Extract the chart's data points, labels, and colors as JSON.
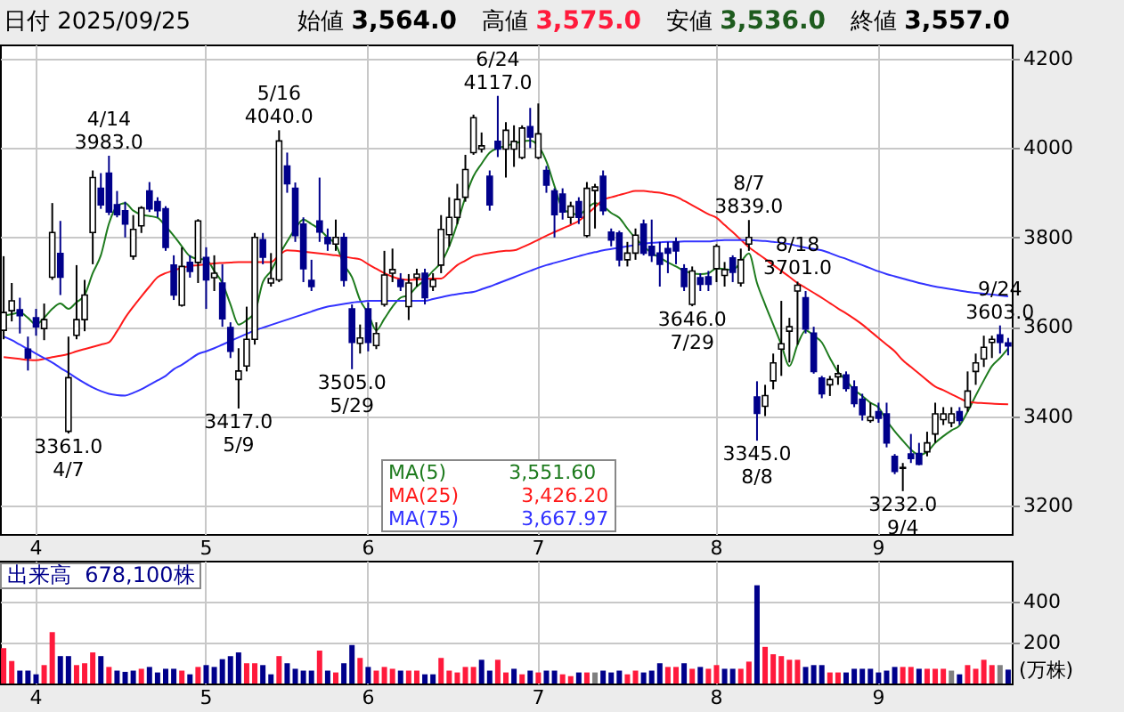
{
  "chart_data": [
    {
      "type": "candlestick",
      "title": "日付 2025/09/25",
      "annotations": [
        "始値 3,564.0",
        "高値 3,575.0",
        "安値 3,536.0",
        "終値 3,557.0",
        "3,551.60",
        "3,426.20",
        "3,667.97",
        {
          "text": "4/14\n3983.0",
          "y": 3983
        },
        {
          "text": "3361.0\n4/7",
          "y": 3361
        },
        {
          "text": "5/16\n4040.0",
          "y": 4040
        },
        {
          "text": "3417.0\n5/9",
          "y": 3417
        },
        {
          "text": "3505.0\n5/29",
          "y": 3505
        },
        {
          "text": "6/24\n4117.0",
          "y": 4117
        },
        {
          "text": "3646.0\n7/29",
          "y": 3646
        },
        {
          "text": "8/7\n3839.0",
          "y": 3839
        },
        {
          "text": "8/18\n3701.0",
          "y": 3701
        },
        {
          "text": "3345.0\n8/8",
          "y": 3345
        },
        {
          "text": "3232.0\n9/4",
          "y": 3232
        },
        {
          "text": "9/24\n3603.0",
          "y": 3603
        }
      ],
      "categories": [
        null,
        null,
        null,
        null,
        "4",
        null,
        null,
        null,
        null,
        null,
        null,
        null,
        null,
        null,
        null,
        null,
        null,
        null,
        null,
        null,
        null,
        null,
        null,
        null,
        null,
        "5",
        null,
        null,
        null,
        null,
        null,
        null,
        null,
        null,
        null,
        null,
        null,
        null,
        null,
        null,
        null,
        null,
        null,
        null,
        null,
        "6",
        null,
        null,
        null,
        null,
        null,
        null,
        null,
        null,
        null,
        null,
        null,
        null,
        null,
        null,
        null,
        null,
        null,
        null,
        null,
        null,
        "7",
        null,
        null,
        null,
        null,
        null,
        null,
        null,
        null,
        null,
        null,
        null,
        null,
        null,
        null,
        null,
        null,
        null,
        null,
        null,
        null,
        null,
        "8",
        null,
        null,
        null,
        null,
        null,
        null,
        null,
        null,
        null,
        null,
        null,
        null,
        null,
        null,
        null,
        null,
        null,
        null,
        null,
        "9",
        null,
        null,
        null,
        null,
        null,
        null,
        null,
        null,
        null,
        null,
        null,
        null,
        null,
        null,
        null,
        null
      ],
      "ohlc": [
        [
          3592,
          3758,
          3572,
          3632
        ],
        [
          3636,
          3698,
          3612,
          3658
        ],
        [
          3638,
          3665,
          3585,
          3625
        ],
        [
          3550,
          3578,
          3502,
          3530
        ],
        [
          3620,
          3640,
          3580,
          3600
        ],
        [
          3596,
          3652,
          3570,
          3616
        ],
        [
          3711,
          3877,
          3705,
          3811
        ],
        [
          3764,
          3837,
          3671,
          3711
        ],
        [
          3366,
          3578,
          3361,
          3486
        ],
        [
          3581,
          3738,
          3572,
          3616
        ],
        [
          3616,
          3705,
          3590,
          3671
        ],
        [
          3811,
          3950,
          3740,
          3934
        ],
        [
          3910,
          3944,
          3864,
          3873
        ],
        [
          3944,
          3983,
          3850,
          3857
        ],
        [
          3873,
          3904,
          3845,
          3851
        ],
        [
          3860,
          3880,
          3800,
          3830
        ],
        [
          3758,
          3850,
          3750,
          3818
        ],
        [
          3826,
          3870,
          3810,
          3866
        ],
        [
          3904,
          3924,
          3857,
          3864
        ],
        [
          3880,
          3890,
          3845,
          3860
        ],
        [
          3864,
          3870,
          3770,
          3778
        ],
        [
          3738,
          3760,
          3660,
          3671
        ],
        [
          3648,
          3778,
          3645,
          3735
        ],
        [
          3744,
          3760,
          3710,
          3724
        ],
        [
          3744,
          3841,
          3698,
          3837
        ],
        [
          3755,
          3778,
          3640,
          3705
        ],
        [
          3710,
          3760,
          3680,
          3720
        ],
        [
          3698,
          3740,
          3600,
          3618
        ],
        [
          3598,
          3610,
          3530,
          3545
        ],
        [
          3482,
          3552,
          3417,
          3501
        ],
        [
          3512,
          3645,
          3500,
          3572
        ],
        [
          3572,
          3810,
          3560,
          3800
        ],
        [
          3795,
          3810,
          3740,
          3756
        ],
        [
          3698,
          3765,
          3690,
          3708
        ],
        [
          3705,
          4040,
          3700,
          4016
        ],
        [
          3960,
          3990,
          3900,
          3920
        ],
        [
          3910,
          3923,
          3790,
          3804
        ],
        [
          3830,
          3845,
          3700,
          3730
        ],
        [
          3704,
          3750,
          3680,
          3690
        ],
        [
          3837,
          3934,
          3790,
          3812
        ],
        [
          3800,
          3820,
          3770,
          3786
        ],
        [
          3785,
          3840,
          3770,
          3800
        ],
        [
          3800,
          3810,
          3690,
          3704
        ],
        [
          3640,
          3650,
          3505,
          3565
        ],
        [
          3563,
          3605,
          3540,
          3575
        ],
        [
          3640,
          3655,
          3545,
          3565
        ],
        [
          3558,
          3610,
          3550,
          3585
        ],
        [
          3650,
          3770,
          3645,
          3716
        ],
        [
          3720,
          3775,
          3700,
          3728
        ],
        [
          3705,
          3720,
          3680,
          3690
        ],
        [
          3645,
          3718,
          3615,
          3698
        ],
        [
          3710,
          3730,
          3690,
          3718
        ],
        [
          3720,
          3730,
          3650,
          3665
        ],
        [
          3690,
          3720,
          3680,
          3705
        ],
        [
          3738,
          3850,
          3720,
          3818
        ],
        [
          3806,
          3890,
          3780,
          3845
        ],
        [
          3845,
          3920,
          3830,
          3885
        ],
        [
          3890,
          3985,
          3880,
          3952
        ],
        [
          3990,
          4075,
          3985,
          4068
        ],
        [
          3998,
          4035,
          3990,
          4005
        ],
        [
          3937,
          3950,
          3860,
          3873
        ],
        [
          4015,
          4117,
          3980,
          3998
        ],
        [
          3998,
          4058,
          3934,
          4040
        ],
        [
          3998,
          4051,
          3958,
          4015
        ],
        [
          3979,
          4051,
          3975,
          4045
        ],
        [
          4048,
          4090,
          4000,
          4025
        ],
        [
          3979,
          4100,
          3975,
          4032
        ],
        [
          3950,
          3960,
          3900,
          3917
        ],
        [
          3904,
          3910,
          3800,
          3851
        ],
        [
          3897,
          3910,
          3840,
          3857
        ],
        [
          3845,
          3880,
          3830,
          3870
        ],
        [
          3880,
          3890,
          3830,
          3845
        ],
        [
          3804,
          3924,
          3800,
          3910
        ],
        [
          3905,
          3920,
          3820,
          3913
        ],
        [
          3937,
          3950,
          3850,
          3860
        ],
        [
          3812,
          3820,
          3780,
          3794
        ],
        [
          3810,
          3815,
          3735,
          3750
        ],
        [
          3750,
          3790,
          3735,
          3765
        ],
        [
          3765,
          3820,
          3750,
          3805
        ],
        [
          3830,
          3840,
          3760,
          3765
        ],
        [
          3780,
          3840,
          3745,
          3760
        ],
        [
          3765,
          3790,
          3690,
          3740
        ],
        [
          3775,
          3790,
          3720,
          3765
        ],
        [
          3790,
          3800,
          3740,
          3770
        ],
        [
          3730,
          3740,
          3680,
          3690
        ],
        [
          3650,
          3735,
          3646,
          3725
        ],
        [
          3710,
          3720,
          3680,
          3695
        ],
        [
          3712,
          3725,
          3680,
          3695
        ],
        [
          3730,
          3785,
          3700,
          3780
        ],
        [
          3715,
          3745,
          3690,
          3728
        ],
        [
          3754,
          3760,
          3700,
          3722
        ],
        [
          3698,
          3775,
          3690,
          3750
        ],
        [
          3785,
          3839,
          3770,
          3800
        ],
        [
          3443,
          3478,
          3345,
          3406
        ],
        [
          3422,
          3470,
          3400,
          3446
        ],
        [
          3479,
          3540,
          3460,
          3519
        ],
        [
          3550,
          3658,
          3490,
          3562
        ],
        [
          3590,
          3620,
          3520,
          3600
        ],
        [
          3680,
          3701,
          3560,
          3693
        ],
        [
          3665,
          3680,
          3585,
          3595
        ],
        [
          3586,
          3600,
          3495,
          3500
        ],
        [
          3485,
          3490,
          3440,
          3450
        ],
        [
          3470,
          3490,
          3445,
          3482
        ],
        [
          3488,
          3515,
          3470,
          3495
        ],
        [
          3492,
          3500,
          3455,
          3462
        ],
        [
          3465,
          3480,
          3420,
          3428
        ],
        [
          3438,
          3450,
          3390,
          3403
        ],
        [
          3390,
          3430,
          3385,
          3398
        ],
        [
          3410,
          3430,
          3385,
          3395
        ],
        [
          3405,
          3430,
          3330,
          3340
        ],
        [
          3310,
          3315,
          3270,
          3276
        ],
        [
          3283,
          3295,
          3232,
          3285
        ],
        [
          3315,
          3360,
          3295,
          3305
        ],
        [
          3316,
          3340,
          3290,
          3292
        ],
        [
          3320,
          3365,
          3310,
          3340
        ],
        [
          3360,
          3430,
          3340,
          3405
        ],
        [
          3392,
          3420,
          3380,
          3405
        ],
        [
          3385,
          3420,
          3375,
          3405
        ],
        [
          3410,
          3420,
          3380,
          3390
        ],
        [
          3420,
          3500,
          3410,
          3456
        ],
        [
          3500,
          3540,
          3470,
          3519
        ],
        [
          3528,
          3580,
          3510,
          3554
        ],
        [
          3565,
          3580,
          3530,
          3572
        ],
        [
          3582,
          3603,
          3540,
          3565
        ],
        [
          3564,
          3575,
          3536,
          3557
        ]
      ],
      "series": [
        {
          "name": "MA(5)",
          "type": "line",
          "color": "#1e7b1e",
          "values": [
            3625,
            3628,
            3632,
            3620,
            3605,
            3620,
            3640,
            3652,
            3640,
            3655,
            3671,
            3720,
            3760,
            3831,
            3870,
            3877,
            3860,
            3851,
            3848,
            3844,
            3825,
            3804,
            3780,
            3758,
            3752,
            3751,
            3725,
            3698,
            3650,
            3605,
            3615,
            3632,
            3700,
            3725,
            3760,
            3791,
            3820,
            3840,
            3830,
            3818,
            3800,
            3784,
            3740,
            3711,
            3660,
            3630,
            3592,
            3618,
            3645,
            3665,
            3671,
            3690,
            3705,
            3725,
            3744,
            3780,
            3831,
            3890,
            3937,
            3965,
            3990,
            4000,
            4005,
            4010,
            4015,
            4017,
            4005,
            3970,
            3915,
            3864,
            3855,
            3851,
            3865,
            3877,
            3870,
            3855,
            3844,
            3820,
            3798,
            3780,
            3765,
            3755,
            3744,
            3735,
            3725,
            3720,
            3718,
            3720,
            3731,
            3729,
            3727,
            3745,
            3764,
            3698,
            3650,
            3605,
            3560,
            3512,
            3560,
            3592,
            3580,
            3565,
            3530,
            3499,
            3480,
            3459,
            3445,
            3430,
            3419,
            3390,
            3366,
            3345,
            3325,
            3313,
            3320,
            3340,
            3355,
            3368,
            3379,
            3410,
            3446,
            3480,
            3512,
            3530,
            3551.6
          ]
        },
        {
          "name": "MA(25)",
          "type": "line",
          "color": "#ff1a1a",
          "values": [
            3532,
            3530,
            3528,
            3526,
            3525,
            3528,
            3532,
            3535,
            3539,
            3545,
            3550,
            3555,
            3560,
            3565,
            3590,
            3620,
            3645,
            3668,
            3690,
            3711,
            3720,
            3726,
            3732,
            3736,
            3738,
            3740,
            3742,
            3743,
            3744,
            3745,
            3745,
            3745,
            3745,
            3745,
            3760,
            3771,
            3770,
            3768,
            3766,
            3764,
            3762,
            3760,
            3757,
            3754,
            3751,
            3740,
            3730,
            3720,
            3712,
            3707,
            3705,
            3706,
            3707,
            3708,
            3708,
            3722,
            3738,
            3748,
            3758,
            3762,
            3765,
            3768,
            3770,
            3771,
            3778,
            3786,
            3795,
            3804,
            3812,
            3820,
            3828,
            3837,
            3852,
            3868,
            3884,
            3890,
            3895,
            3900,
            3904,
            3904,
            3902,
            3900,
            3896,
            3891,
            3882,
            3872,
            3862,
            3852,
            3844,
            3828,
            3812,
            3795,
            3778,
            3765,
            3752,
            3738,
            3725,
            3712,
            3698,
            3687,
            3676,
            3665,
            3653,
            3641,
            3630,
            3618,
            3605,
            3590,
            3575,
            3560,
            3545,
            3525,
            3510,
            3495,
            3480,
            3466,
            3458,
            3449,
            3440,
            3432,
            3430,
            3429,
            3428,
            3427,
            3426.2
          ]
        },
        {
          "name": "MA(75)",
          "type": "line",
          "color": "#3333ff",
          "values": [
            3578,
            3570,
            3560,
            3550,
            3540,
            3530,
            3520,
            3508,
            3497,
            3485,
            3474,
            3464,
            3456,
            3450,
            3447,
            3446,
            3452,
            3460,
            3470,
            3480,
            3490,
            3505,
            3515,
            3527,
            3539,
            3545,
            3552,
            3560,
            3568,
            3576,
            3584,
            3592,
            3598,
            3604,
            3610,
            3616,
            3622,
            3628,
            3634,
            3640,
            3645,
            3648,
            3651,
            3654,
            3656,
            3658,
            3658,
            3658,
            3658,
            3658,
            3658,
            3658,
            3658,
            3662,
            3666,
            3670,
            3673,
            3676,
            3678,
            3684,
            3690,
            3697,
            3704,
            3711,
            3718,
            3725,
            3732,
            3738,
            3743,
            3748,
            3753,
            3758,
            3763,
            3767,
            3771,
            3774,
            3777,
            3780,
            3783,
            3786,
            3788,
            3789,
            3790,
            3790,
            3791,
            3791,
            3791,
            3791,
            3793,
            3794,
            3794,
            3794,
            3794,
            3793,
            3792,
            3790,
            3788,
            3785,
            3781,
            3777,
            3774,
            3771,
            3765,
            3758,
            3752,
            3745,
            3738,
            3731,
            3724,
            3718,
            3713,
            3708,
            3703,
            3698,
            3694,
            3690,
            3687,
            3684,
            3681,
            3678,
            3676,
            3674,
            3672,
            3670,
            3667.97
          ]
        }
      ],
      "ylim": [
        3136,
        4232
      ],
      "yticks": [
        3200,
        3400,
        3600,
        3800,
        4000,
        4200
      ],
      "grid": true,
      "legend": "bottom"
    },
    {
      "type": "bar",
      "title": "出来高",
      "annotations": [
        "678,100株"
      ],
      "ylabel": "(万株)",
      "categories": [
        null,
        null,
        null,
        null,
        "4",
        null,
        null,
        null,
        null,
        null,
        null,
        null,
        null,
        null,
        null,
        null,
        null,
        null,
        null,
        null,
        null,
        null,
        null,
        null,
        null,
        "5",
        null,
        null,
        null,
        null,
        null,
        null,
        null,
        null,
        null,
        null,
        null,
        null,
        null,
        null,
        null,
        null,
        null,
        null,
        null,
        "6",
        null,
        null,
        null,
        null,
        null,
        null,
        null,
        null,
        null,
        null,
        null,
        null,
        null,
        null,
        null,
        null,
        null,
        null,
        null,
        null,
        "7",
        null,
        null,
        null,
        null,
        null,
        null,
        null,
        null,
        null,
        null,
        null,
        null,
        null,
        null,
        null,
        null,
        null,
        null,
        null,
        null,
        null,
        "8",
        null,
        null,
        null,
        null,
        null,
        null,
        null,
        null,
        null,
        null,
        null,
        null,
        null,
        null,
        null,
        null,
        null,
        null,
        null,
        "9",
        null,
        null,
        null,
        null,
        null,
        null,
        null,
        null,
        null,
        null,
        null,
        null,
        null,
        null,
        null,
        null
      ],
      "values": [
        173,
        110,
        63,
        63,
        45,
        90,
        251,
        134,
        134,
        90,
        99,
        152,
        134,
        81,
        63,
        57,
        63,
        72,
        81,
        54,
        72,
        72,
        63,
        45,
        81,
        90,
        81,
        119,
        134,
        152,
        99,
        99,
        90,
        45,
        134,
        99,
        72,
        63,
        63,
        161,
        63,
        54,
        99,
        188,
        125,
        81,
        63,
        81,
        72,
        63,
        63,
        63,
        45,
        45,
        125,
        63,
        54,
        81,
        81,
        116,
        63,
        116,
        54,
        72,
        45,
        63,
        54,
        63,
        63,
        45,
        36,
        54,
        54,
        54,
        63,
        54,
        63,
        45,
        63,
        54,
        63,
        99,
        81,
        81,
        99,
        72,
        81,
        72,
        90,
        72,
        72,
        72,
        107,
        480,
        179,
        143,
        134,
        116,
        116,
        81,
        90,
        90,
        54,
        54,
        54,
        72,
        72,
        72,
        54,
        63,
        81,
        81,
        81,
        72,
        72,
        72,
        72,
        63,
        45,
        90,
        72,
        116,
        90,
        90,
        67.81
      ],
      "colors": [
        "#ff1a3c",
        "#ff1a3c",
        "#00008b",
        "#00008b",
        "#00008b",
        "#ff1a3c",
        "#ff1a3c",
        "#00008b",
        "#00008b",
        "#ff1a3c",
        "#ff1a3c",
        "#ff1a3c",
        "#00008b",
        "#ff1a3c",
        "#00008b",
        "#00008b",
        "#00008b",
        "#ff1a3c",
        "#00008b",
        "#00008b",
        "#00008b",
        "#00008b",
        "#ff1a3c",
        "#00008b",
        "#ff1a3c",
        "#00008b",
        "#00008b",
        "#00008b",
        "#00008b",
        "#00008b",
        "#ff1a3c",
        "#ff1a3c",
        "#00008b",
        "#00008b",
        "#ff1a3c",
        "#00008b",
        "#00008b",
        "#00008b",
        "#00008b",
        "#ff1a3c",
        "#00008b",
        "#ff1a3c",
        "#00008b",
        "#00008b",
        "#ff1a3c",
        "#00008b",
        "#ff1a3c",
        "#ff1a3c",
        "#ff1a3c",
        "#00008b",
        "#ff1a3c",
        "#ff1a3c",
        "#00008b",
        "#00008b",
        "#ff1a3c",
        "#ff1a3c",
        "#ff1a3c",
        "#ff1a3c",
        "#ff1a3c",
        "#00008b",
        "#00008b",
        "#ff1a3c",
        "#ff1a3c",
        "#00008b",
        "#ff1a3c",
        "#00008b",
        "#ff1a3c",
        "#00008b",
        "#00008b",
        "#ff1a3c",
        "#ff1a3c",
        "#00008b",
        "#ff1a3c",
        "#808080",
        "#00008b",
        "#00008b",
        "#00008b",
        "#ff1a3c",
        "#ff1a3c",
        "#00008b",
        "#00008b",
        "#00008b",
        "#ff1a3c",
        "#ff1a3c",
        "#00008b",
        "#ff1a3c",
        "#00008b",
        "#ff1a3c",
        "#ff1a3c",
        "#00008b",
        "#00008b",
        "#ff1a3c",
        "#ff1a3c",
        "#00008b",
        "#ff1a3c",
        "#ff1a3c",
        "#ff1a3c",
        "#ff1a3c",
        "#ff1a3c",
        "#00008b",
        "#00008b",
        "#00008b",
        "#ff1a3c",
        "#ff1a3c",
        "#00008b",
        "#00008b",
        "#00008b",
        "#00008b",
        "#00008b",
        "#00008b",
        "#00008b",
        "#ff1a3c",
        "#ff1a3c",
        "#00008b",
        "#ff1a3c",
        "#ff1a3c",
        "#ff1a3c",
        "#808080",
        "#00008b",
        "#ff1a3c",
        "#ff1a3c",
        "#ff1a3c",
        "#ff1a3c",
        "#808080",
        "#00008b"
      ],
      "ylim": [
        0,
        600
      ],
      "yticks": [
        200,
        400
      ],
      "grid": true
    }
  ]
}
